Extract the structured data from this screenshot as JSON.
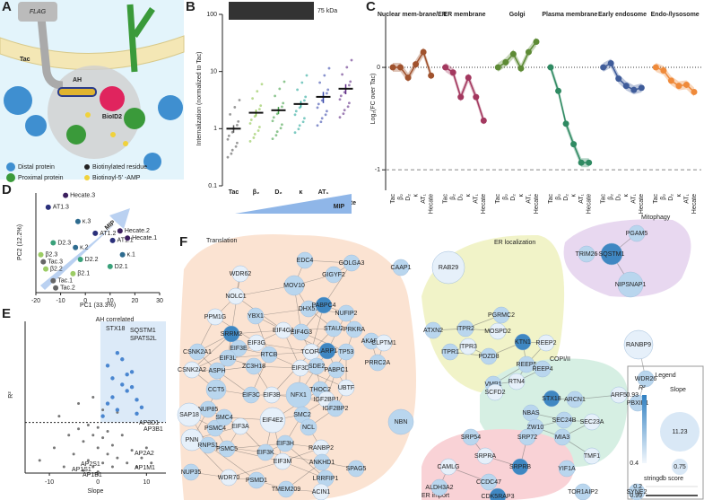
{
  "panel_a": {
    "letter": "A",
    "flag": "FLAG",
    "tac": "Tac",
    "ah": "AH",
    "bioid": "BioID2",
    "legend": [
      "Distal protein",
      "Biotinylated residue",
      "Proximal protein",
      "Biotinoyl-5′ -AMP"
    ]
  },
  "panel_b": {
    "letter": "B",
    "type": "strip",
    "blot_label": "75 kDa",
    "ylabel": "Internalization (normalized to Tac)",
    "arrow_label": "MIP",
    "categories": [
      "Tac",
      "β₂",
      "D₂",
      "κ",
      "AT₁",
      "Hecate"
    ],
    "values": [
      1.0,
      1.9,
      2.1,
      2.7,
      3.6,
      5.0
    ],
    "errors": [
      0.15,
      0.25,
      0.3,
      0.35,
      0.8,
      1.0
    ],
    "colors": [
      "#555555",
      "#8bc34a",
      "#43a047",
      "#26a69a",
      "#3949ab",
      "#5e2a84"
    ],
    "log_scale": true,
    "ylim": [
      0.1,
      100
    ],
    "yticks": [
      0.1,
      1,
      10,
      100
    ]
  },
  "panel_c": {
    "letter": "C",
    "type": "line",
    "ylabel": "Log₂(FC over Tac)",
    "categories": [
      "Tac",
      "β₂",
      "D₂",
      "κ",
      "AT₁",
      "Hecate"
    ],
    "ylim": [
      -1.2,
      0.5
    ],
    "yticks": [
      -1,
      0
    ],
    "series": [
      {
        "name": "Nuclear mem-brane/ER",
        "color": "#a0522d",
        "values": [
          0,
          0,
          -0.1,
          0.03,
          0.15,
          -0.08
        ]
      },
      {
        "name": "ER membrane",
        "color": "#a3385f",
        "values": [
          0,
          -0.05,
          -0.29,
          -0.1,
          -0.29,
          -0.52
        ]
      },
      {
        "name": "Golgi",
        "color": "#5d8a35",
        "values": [
          0,
          0.05,
          0.13,
          -0.01,
          0.15,
          0.25
        ]
      },
      {
        "name": "Plasma membrane",
        "color": "#2f8a62",
        "values": [
          0,
          -0.23,
          -0.55,
          -0.75,
          -0.93,
          -0.93
        ]
      },
      {
        "name": "Early endosome",
        "color": "#3f5c9a",
        "values": [
          0,
          0.04,
          -0.11,
          -0.18,
          -0.22,
          -0.2
        ]
      },
      {
        "name": "Endo-/lysosome",
        "color": "#ef8a3a",
        "values": [
          0,
          -0.03,
          -0.13,
          -0.18,
          -0.17,
          -0.24
        ]
      }
    ]
  },
  "panel_d": {
    "letter": "D",
    "type": "scatter",
    "xlabel": "PC1 (33.3%)",
    "ylabel": "PC2 (12.2%)",
    "arrow_label": "MIP",
    "xlim": [
      -20,
      30
    ],
    "xticks": [
      -20,
      -10,
      0,
      10,
      20,
      30
    ],
    "ylim": [
      -10,
      32
    ],
    "names": [
      "Hecate.3",
      "AT1.3",
      "κ.3",
      "AT1.2",
      "Hecate.2",
      "AT1.1",
      "Hecate.1",
      "D2.3",
      "β2.3",
      "κ.2",
      "κ.1",
      "Tac.3",
      "D2.2",
      "D2.1",
      "β2.2",
      "β2.1",
      "Tac.1",
      "Tac.2"
    ],
    "x": [
      -8,
      -15,
      -3,
      4,
      14,
      11,
      17,
      -13,
      -18,
      -4,
      15,
      -17,
      -2,
      10,
      -16,
      -5,
      -13,
      -12
    ],
    "y": [
      31,
      26,
      20,
      15,
      16,
      12,
      13,
      11,
      6,
      9,
      6,
      3,
      4,
      1,
      0,
      -2,
      -5,
      -8
    ],
    "colors": [
      "#3b1f5e",
      "#2a2f7a",
      "#2e6b8f",
      "#2a2f7a",
      "#3b1f5e",
      "#2a2f7a",
      "#3b1f5e",
      "#3aa17a",
      "#9ccc65",
      "#2e6b8f",
      "#2e6b8f",
      "#666666",
      "#3aa17a",
      "#3aa17a",
      "#9ccc65",
      "#9ccc65",
      "#666666",
      "#666666"
    ]
  },
  "panel_e": {
    "letter": "E",
    "type": "scatter",
    "xlabel": "Slope",
    "ylabel": "R²",
    "title": "AH correlated",
    "xlim": [
      -15,
      14
    ],
    "xticks": [
      -10,
      0,
      10
    ],
    "ylim": [
      0,
      1.2
    ],
    "threshold": 0.4,
    "legend": [
      "SQSTM1",
      "SPATS2L"
    ],
    "gray": {
      "x": [
        -12,
        -9,
        -7,
        -6,
        -5,
        -4,
        -3,
        -3,
        -2,
        -2,
        -1,
        -1,
        0,
        0,
        0,
        1,
        1,
        2,
        2,
        3,
        3,
        4,
        5,
        6,
        7,
        8,
        9,
        11,
        -8,
        -4,
        -1,
        1,
        4,
        10
      ],
      "y": [
        0.1,
        0.2,
        0.05,
        0.3,
        0.15,
        0.35,
        0.02,
        0.25,
        0.1,
        0.38,
        0.05,
        0.3,
        0.01,
        0.2,
        0.36,
        0.08,
        0.28,
        0.15,
        0.33,
        0.05,
        0.22,
        0.12,
        0.3,
        0.08,
        0.18,
        0.05,
        0.12,
        0.08,
        0.45,
        0.55,
        0.6,
        0.5,
        0.48,
        0.2
      ]
    },
    "blue": {
      "x": [
        1,
        2,
        3,
        4,
        5,
        6,
        7,
        8,
        3,
        5,
        7,
        9,
        2,
        6,
        4,
        8
      ],
      "y": [
        0.45,
        0.55,
        0.6,
        0.5,
        0.7,
        0.65,
        0.8,
        0.58,
        0.75,
        0.9,
        0.68,
        0.52,
        0.85,
        0.78,
        0.95,
        0.47
      ]
    },
    "annotations": [
      "STX18",
      "AP3D1",
      "AP3B1",
      "AP2A2",
      "AP2S1",
      "AP1S1",
      "AP1B1",
      "AP1M1"
    ]
  },
  "panel_f": {
    "letter": "F",
    "clusters": [
      "Translation",
      "ER localization",
      "Mitophagy",
      "COPI/II",
      "ER import"
    ],
    "nodes": [
      "WDR62",
      "EDC4",
      "GOLGA3",
      "NOLC1",
      "MOV10",
      "GIGYF2",
      "PPM1G",
      "DHX57",
      "YBX1",
      "PABPC4",
      "NUFIP2",
      "PRKRA",
      "SRRM2",
      "CSNK2A1",
      "STAU2",
      "EIF4G1",
      "EIF4G3",
      "EIF3E",
      "EIF3G",
      "EIF3L",
      "RTCB",
      "TCOF1",
      "LARP1",
      "TP53",
      "CSNK2A2",
      "ASPH",
      "ZC3H18",
      "EIF3D",
      "SDE2",
      "PABPC1",
      "UBTF",
      "CCT5",
      "EIF3C",
      "EIF3B",
      "NFX1",
      "THOC2",
      "IGF2BP1",
      "IGF2BP2",
      "NUP85",
      "SAP18",
      "PSMC4",
      "SMC4",
      "EIF4E2",
      "SMC2",
      "NCL",
      "PNN",
      "RNPS1",
      "PSMC5",
      "EIF3A",
      "EIF3K",
      "EIF3H",
      "RANBP2",
      "ANKHD1",
      "LRRFIP1",
      "EIF3M",
      "SPAG5",
      "NUP35",
      "WDR70",
      "PSMD1",
      "TMEM209",
      "ACIN1",
      "AKAP1",
      "PRRC2A",
      "CLPTM1",
      "NBN",
      "CAAP1",
      "RAB29",
      "ATXN2",
      "ITPR2",
      "MOSPD2",
      "PGRMC2",
      "ITPR1",
      "ITPR3",
      "PDZD8",
      "KTN1",
      "REEP2",
      "REEP5",
      "VMP1",
      "RTN4",
      "REEP4",
      "TRIM26",
      "SQSTM1",
      "PGAM5",
      "NIPSNAP1",
      "RANBP9",
      "WDR26",
      "PBXIP1",
      "SCFD2",
      "STX18",
      "ARCN1",
      "ARF5",
      "NBAS",
      "SEC24B",
      "SEC23A",
      "ZW10",
      "MIA3",
      "TMF1",
      "SRP54",
      "SRP72",
      "SRPRA",
      "SRPRB",
      "YIF1A",
      "CAMLG",
      "ALDH3A2",
      "CCDC47",
      "CDK5RAP3",
      "TOR1AIP2",
      "SYNE2"
    ],
    "legend": {
      "title": "Legend",
      "r2": "R²",
      "r2_range": [
        0.93,
        0.4
      ],
      "slope": "Slope",
      "slope_range": [
        11.23,
        0.75
      ],
      "string": "stringdb score",
      "string_range": [
        0.2,
        0.99
      ]
    }
  }
}
